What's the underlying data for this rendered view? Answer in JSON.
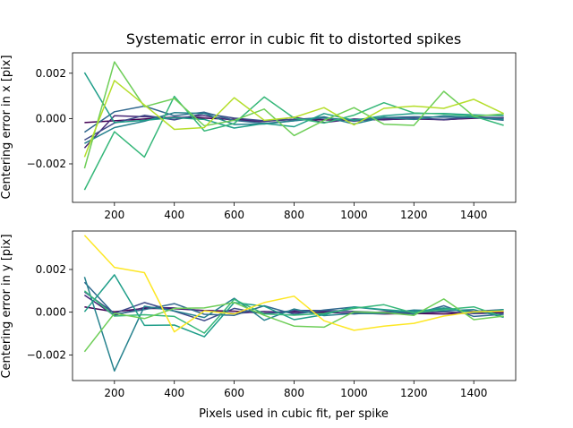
{
  "chart_data": [
    {
      "type": "line",
      "title": "Systematic error in cubic fit to distorted spikes",
      "xlabel": "",
      "ylabel": "Centering error in x [pix]",
      "xlim": [
        60,
        1540
      ],
      "ylim": [
        -0.0037,
        0.0029
      ],
      "xticks": [
        200,
        400,
        600,
        800,
        1000,
        1200,
        1400
      ],
      "xticklabels": [
        "200",
        "400",
        "600",
        "800",
        "1000",
        "1200",
        "1400"
      ],
      "yticks": [
        -0.002,
        0.0,
        0.002
      ],
      "yticklabels": [
        "−0.002",
        "0.000",
        "0.002"
      ],
      "x": [
        100,
        200,
        300,
        400,
        500,
        600,
        700,
        800,
        900,
        1000,
        1100,
        1200,
        1300,
        1400,
        1500
      ],
      "series": [
        {
          "color": "#440154",
          "values": [
            -0.00018,
            -0.0001,
            -2e-05,
            6e-05,
            2e-05,
            -4e-05,
            -0.00012,
            -4e-05,
            -6e-05,
            -8e-05,
            -4e-05,
            -2e-05,
            -5e-05,
            1e-05,
            4e-05
          ]
        },
        {
          "color": "#482878",
          "values": [
            -0.0013,
            0.00012,
            8e-05,
            2e-05,
            0.00012,
            -8e-05,
            -0.00014,
            6e-05,
            -0.00018,
            -2e-05,
            -6e-05,
            2e-05,
            -6e-05,
            4e-05,
            2e-05
          ]
        },
        {
          "color": "#3e4a89",
          "values": [
            -0.00095,
            -0.0002,
            0.00014,
            -6e-05,
            0.00022,
            2e-05,
            -0.0001,
            -4e-05,
            4e-05,
            -0.00012,
            2e-05,
            2e-05,
            -4e-05,
            8e-05,
            2e-05
          ]
        },
        {
          "color": "#31688e",
          "values": [
            -0.0006,
            0.0003,
            0.00055,
            0.00012,
            0.00028,
            -8e-05,
            -0.00022,
            -0.0001,
            2e-05,
            -6e-05,
            4e-05,
            8e-05,
            6e-05,
            6e-05,
            -8e-05
          ]
        },
        {
          "color": "#26828e",
          "values": [
            -0.0011,
            -0.0004,
            -0.00012,
            0.00026,
            0.00022,
            -0.00026,
            -0.00024,
            -0.0001,
            8e-05,
            -0.00024,
            6e-05,
            -4e-05,
            0.00012,
            4e-05,
            -4e-05
          ]
        },
        {
          "color": "#1f9e89",
          "values": [
            0.00203,
            -0.00018,
            -8e-05,
            4e-05,
            -4e-05,
            -0.00042,
            -0.00022,
            -0.00036,
            0.00022,
            -8e-05,
            0.00012,
            0.00022,
            0.00022,
            0.00016,
            0.00012
          ]
        },
        {
          "color": "#35b779",
          "values": [
            -0.00315,
            -0.00058,
            -0.0017,
            0.00098,
            -0.00055,
            -0.00022,
            0.00095,
            2e-05,
            -0.0002,
            0.00015,
            0.0007,
            0.00025,
            0.0002,
            0.0001,
            -0.0003
          ]
        },
        {
          "color": "#6ece58",
          "values": [
            -0.0022,
            0.0025,
            0.00052,
            0.00088,
            -0.00032,
            -8e-05,
            0.00042,
            -0.00075,
            -8e-05,
            0.00048,
            -0.00025,
            -0.0003,
            0.0012,
            0.0001,
            0.0002
          ]
        },
        {
          "color": "#b5de2b",
          "values": [
            -0.0017,
            0.00168,
            0.0006,
            -0.00048,
            -0.0004,
            0.00092,
            -8e-05,
            5e-05,
            0.00048,
            -0.00028,
            0.00045,
            0.00055,
            0.00045,
            0.00085,
            0.00022
          ]
        }
      ]
    },
    {
      "type": "line",
      "title": "",
      "xlabel": "Pixels used in cubic fit, per spike",
      "ylabel": "Centering error in y [pix]",
      "xlim": [
        60,
        1540
      ],
      "ylim": [
        -0.0032,
        0.0038
      ],
      "xticks": [
        200,
        400,
        600,
        800,
        1000,
        1200,
        1400
      ],
      "xticklabels": [
        "200",
        "400",
        "600",
        "800",
        "1000",
        "1200",
        "1400"
      ],
      "yticks": [
        -0.002,
        0.0,
        0.002
      ],
      "yticklabels": [
        "−0.002",
        "0.000",
        "0.002"
      ],
      "x": [
        100,
        200,
        300,
        400,
        500,
        600,
        700,
        800,
        900,
        1000,
        1100,
        1200,
        1300,
        1400,
        1500
      ],
      "series": [
        {
          "color": "#440154",
          "values": [
            0.00025,
            2e-05,
            0.00018,
            0.00016,
            8e-05,
            5e-05,
            -5e-05,
            2e-05,
            -2e-05,
            -4e-05,
            -8e-05,
            -6e-05,
            -8e-05,
            -4e-05,
            2e-05
          ]
        },
        {
          "color": "#482878",
          "values": [
            0.0008,
            -0.00015,
            0.00022,
            0.0002,
            6e-05,
            -6e-05,
            4e-05,
            -2e-05,
            4e-05,
            -8e-05,
            2e-05,
            -4e-05,
            2e-05,
            -6e-05,
            -4e-05
          ]
        },
        {
          "color": "#3e4a89",
          "values": [
            0.00095,
            -5e-05,
            0.00045,
            5e-05,
            -0.0004,
            0.00018,
            -8e-05,
            8e-05,
            8e-05,
            4e-05,
            -2e-05,
            4e-05,
            0.00014,
            4e-05,
            0.00012
          ]
        },
        {
          "color": "#31688e",
          "values": [
            0.0014,
            -0.0001,
            0.00012,
            0.0004,
            -0.0001,
            -0.00015,
            0.0003,
            -0.0001,
            0.0001,
            0.00024,
            0.0001,
            -0.0001,
            0.0003,
            -0.0002,
            -0.0001
          ]
        },
        {
          "color": "#26828e",
          "values": [
            0.00165,
            -0.00275,
            0.00028,
            6e-05,
            -0.00025,
            0.00065,
            -0.00038,
            0.00015,
            -0.00016,
            -6e-05,
            -6e-05,
            0.0001,
            6e-05,
            0.00012,
            -0.00024
          ]
        },
        {
          "color": "#1f9e89",
          "values": [
            2e-05,
            0.00175,
            -0.00062,
            -0.0006,
            -0.00115,
            0.00045,
            0.00028,
            -0.00035,
            -0.00012,
            0.00025,
            0.00012,
            2e-05,
            0.0002,
            -2e-05,
            0.00012
          ]
        },
        {
          "color": "#35b779",
          "values": [
            0.001,
            -0.00018,
            -0.00012,
            -0.0002,
            -0.00098,
            0.0006,
            -8e-05,
            -0.00014,
            -6e-05,
            0.00018,
            0.00035,
            -4e-05,
            0.00012,
            0.00025,
            -0.00022
          ]
        },
        {
          "color": "#6ece58",
          "values": [
            -0.00185,
            -5e-05,
            -0.0003,
            0.00018,
            0.0002,
            0.00045,
            -0.00015,
            -0.00065,
            -0.0007,
            2e-05,
            -2e-05,
            -0.00015,
            0.00062,
            -0.00035,
            -0.00018
          ]
        },
        {
          "color": "#fde725",
          "values": [
            0.0036,
            0.0021,
            0.00185,
            -0.00092,
            6e-05,
            -8e-05,
            0.00045,
            0.00075,
            -0.0004,
            -0.00085,
            -0.00065,
            -0.00052,
            -0.00018,
            2e-05,
            5e-05
          ]
        }
      ]
    }
  ]
}
